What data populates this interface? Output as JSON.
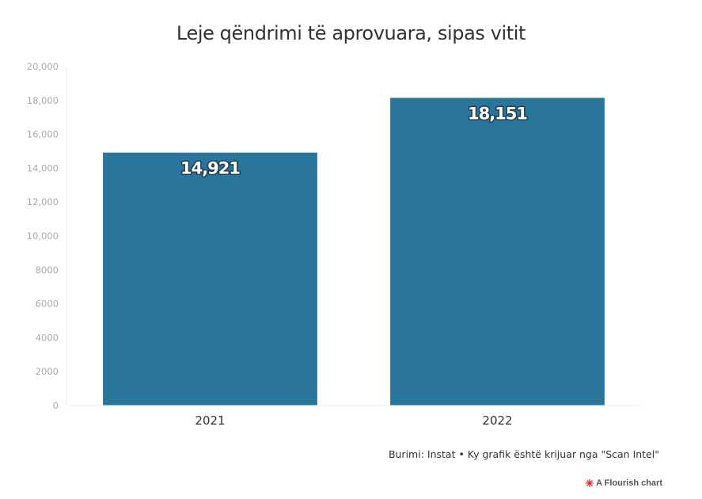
{
  "title": "Leje qëndrimi të aprovuara, sipas vitit",
  "source_note": "Burimi: Instat • Ky grafik është krijuar nga \"Scan Intel\"",
  "credit": {
    "label": "A Flourish chart",
    "logo_icon": "flourish-logo-icon"
  },
  "colors": {
    "bar": "#2a769b",
    "label_text": "#ffffff",
    "label_outline": "#1c3d52",
    "axis_text": "#aaaaaa",
    "category_text": "#333333",
    "gridline": "#eeeeee",
    "logo": "#e8232b"
  },
  "chart_data": {
    "type": "bar",
    "categories": [
      "2021",
      "2022"
    ],
    "values": [
      14921,
      18151
    ],
    "value_labels": [
      "14,921",
      "18,151"
    ],
    "ylim": [
      0,
      20000
    ],
    "yticks": [
      {
        "value": 0,
        "label": "0"
      },
      {
        "value": 2000,
        "label": "2000"
      },
      {
        "value": 4000,
        "label": "4000"
      },
      {
        "value": 6000,
        "label": "6000"
      },
      {
        "value": 8000,
        "label": "8000"
      },
      {
        "value": 10000,
        "label": "10,000"
      },
      {
        "value": 12000,
        "label": "12,000"
      },
      {
        "value": 14000,
        "label": "14,000"
      },
      {
        "value": 16000,
        "label": "16,000"
      },
      {
        "value": 18000,
        "label": "18,000"
      },
      {
        "value": 20000,
        "label": "20,000"
      }
    ],
    "title": "Leje qëndrimi të aprovuara, sipas vitit",
    "xlabel": "",
    "ylabel": "",
    "grid": false,
    "legend": "none"
  }
}
